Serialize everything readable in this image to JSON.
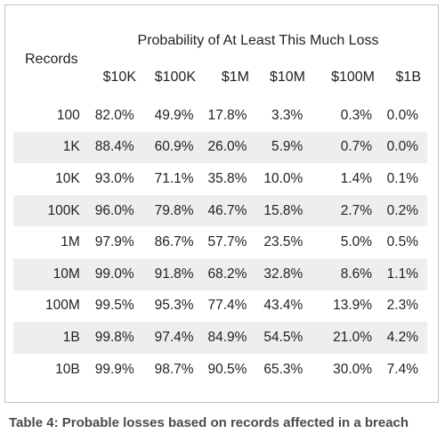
{
  "table": {
    "row_header": "Records",
    "group_header": "Probability of At Least This Much Loss",
    "columns": [
      "$10K",
      "$100K",
      "$1M",
      "$10M",
      "$100M",
      "$1B"
    ],
    "rows": [
      {
        "records": "100",
        "values": [
          "82.0%",
          "49.9%",
          "17.8%",
          "3.3%",
          "0.3%",
          "0.0%"
        ]
      },
      {
        "records": "1K",
        "values": [
          "88.4%",
          "60.9%",
          "26.0%",
          "5.9%",
          "0.7%",
          "0.0%"
        ]
      },
      {
        "records": "10K",
        "values": [
          "93.0%",
          "71.1%",
          "35.8%",
          "10.0%",
          "1.4%",
          "0.1%"
        ]
      },
      {
        "records": "100K",
        "values": [
          "96.0%",
          "79.8%",
          "46.7%",
          "15.8%",
          "2.7%",
          "0.2%"
        ]
      },
      {
        "records": "1M",
        "values": [
          "97.9%",
          "86.7%",
          "57.7%",
          "23.5%",
          "5.0%",
          "0.5%"
        ]
      },
      {
        "records": "10M",
        "values": [
          "99.0%",
          "91.8%",
          "68.2%",
          "32.8%",
          "8.6%",
          "1.1%"
        ]
      },
      {
        "records": "100M",
        "values": [
          "99.5%",
          "95.3%",
          "77.4%",
          "43.4%",
          "13.9%",
          "2.3%"
        ]
      },
      {
        "records": "1B",
        "values": [
          "99.8%",
          "97.4%",
          "84.9%",
          "54.5%",
          "21.0%",
          "4.2%"
        ]
      },
      {
        "records": "10B",
        "values": [
          "99.9%",
          "98.7%",
          "90.5%",
          "65.3%",
          "30.0%",
          "7.4%"
        ]
      }
    ],
    "stripe_color": "#eeeeee"
  },
  "caption": "Table 4: Probable losses based on records affected in a breach"
}
